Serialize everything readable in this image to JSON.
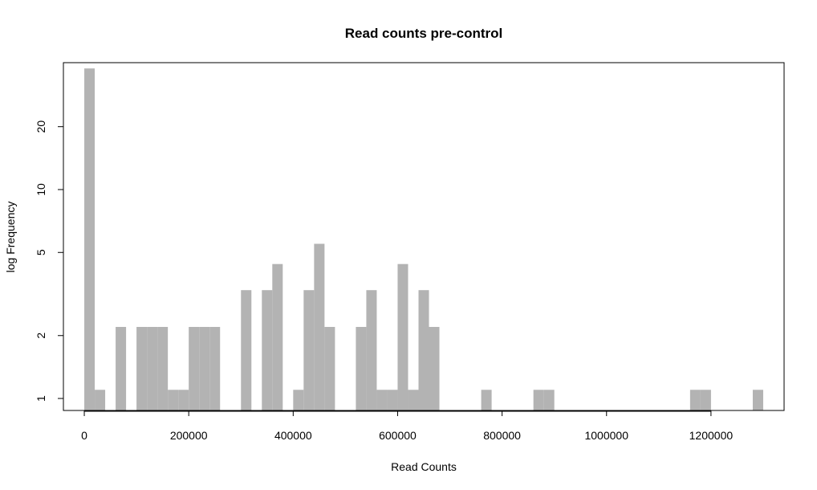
{
  "chart_data": {
    "type": "histogram",
    "title": "Read counts pre-control",
    "x_label": "Read Counts",
    "y_label": "log Frequency",
    "bins": [
      0,
      20000,
      40000,
      60000,
      80000,
      100000,
      120000,
      140000,
      160000,
      180000,
      200000,
      220000,
      240000,
      260000,
      280000,
      300000,
      320000,
      340000,
      360000,
      380000,
      400000,
      420000,
      440000,
      460000,
      480000,
      500000,
      520000,
      540000,
      560000,
      580000,
      600000,
      620000,
      640000,
      660000,
      680000,
      700000,
      720000,
      740000,
      760000,
      780000,
      800000,
      820000,
      840000,
      860000,
      880000,
      900000,
      920000,
      940000,
      960000,
      980000,
      1000000,
      1020000,
      1040000,
      1060000,
      1080000,
      1100000,
      1120000,
      1140000,
      1160000,
      1180000,
      1200000,
      1220000,
      1240000,
      1260000,
      1280000,
      1300000,
      1320000
    ],
    "values": [
      38,
      1.1,
      0,
      2.2,
      0,
      2.2,
      2.2,
      2.2,
      1.1,
      1.1,
      2.2,
      2.2,
      2.2,
      0,
      0,
      3.3,
      0,
      3.3,
      4.4,
      0,
      1.1,
      3.3,
      5.5,
      2.2,
      0,
      0,
      2.2,
      3.3,
      1.1,
      1.1,
      4.4,
      1.1,
      3.3,
      2.2,
      0,
      0,
      0,
      0,
      1.1,
      0,
      0,
      0,
      0,
      1.1,
      1.1,
      0,
      0,
      0,
      0,
      0,
      0,
      0,
      0,
      0,
      0,
      0,
      0,
      0,
      1.1,
      1.1,
      0,
      0,
      0,
      0,
      1.1,
      0
    ],
    "color": "#b3b3b3",
    "log_y": true,
    "xlim": [
      -40000,
      1340000
    ],
    "ylim": [
      0.876,
      40.5
    ],
    "xticks": [
      0,
      200000,
      400000,
      600000,
      800000,
      1000000,
      1200000
    ],
    "yticks": [
      1,
      2,
      5,
      10,
      20
    ]
  }
}
